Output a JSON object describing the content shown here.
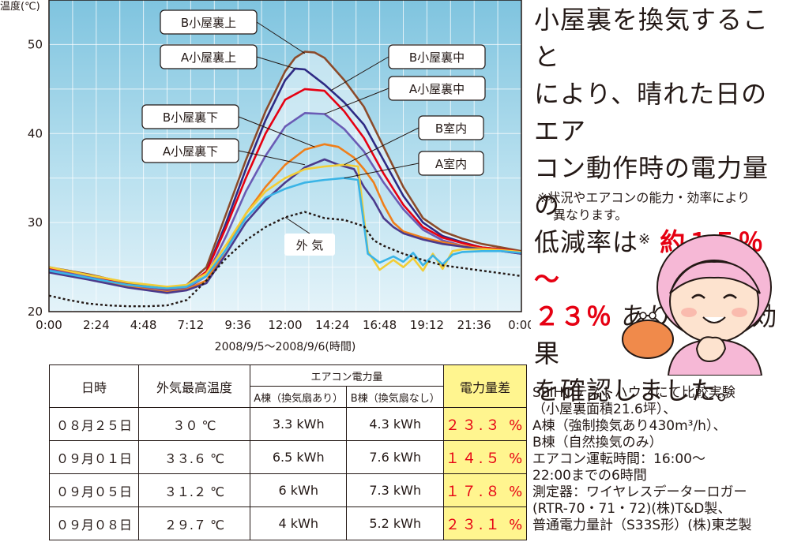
{
  "chart_data": {
    "type": "line",
    "ylabel": "温度(℃)",
    "xlabel": "2008/9/5～2008/9/6(時間)",
    "ylim": [
      20,
      55
    ],
    "xlim": [
      0,
      24
    ],
    "yticks": [
      20,
      30,
      40,
      50
    ],
    "xticks": [
      "0:00",
      "2:24",
      "4:48",
      "7:12",
      "9:36",
      "12:00",
      "14:24",
      "16:48",
      "19:12",
      "21:36",
      "0:00"
    ],
    "grid": true,
    "series": [
      {
        "name": "B小屋裏上",
        "color": "#8b4b2b",
        "x": [
          0,
          2,
          4,
          6,
          7,
          8,
          9,
          10,
          11,
          12,
          12.5,
          13,
          13.5,
          14,
          15,
          16,
          17,
          18,
          19,
          20,
          21,
          22,
          23,
          24
        ],
        "y": [
          25,
          24.2,
          23.2,
          22.6,
          23,
          25,
          31,
          37,
          42.5,
          47,
          48.5,
          49.2,
          49.1,
          48.5,
          46,
          43,
          38.5,
          34,
          30.5,
          29,
          28.2,
          27.6,
          27.2,
          26.8
        ]
      },
      {
        "name": "A小屋裏上",
        "color": "#2e2a84",
        "x": [
          0,
          2,
          4,
          6,
          7,
          8,
          9,
          10,
          11,
          12,
          12.5,
          13,
          14,
          15,
          16,
          17,
          18,
          19,
          20,
          21,
          22,
          23,
          24
        ],
        "y": [
          24.8,
          24,
          23,
          22.3,
          22.7,
          24.5,
          30,
          36,
          41.5,
          46,
          47.3,
          47.2,
          45.5,
          43.5,
          41,
          37,
          33,
          30,
          28.5,
          27.8,
          27.2,
          27,
          26.6
        ]
      },
      {
        "name": "B小屋裏中",
        "color": "#e60012",
        "x": [
          0,
          2,
          4,
          6,
          7,
          8,
          9,
          10,
          11,
          12,
          13,
          14,
          15,
          16,
          17,
          18,
          19,
          20,
          21,
          22,
          23,
          24
        ],
        "y": [
          24.8,
          24,
          23,
          22.4,
          22.8,
          24.5,
          29.5,
          35,
          40,
          43.8,
          45,
          44.8,
          42.5,
          39.5,
          35.5,
          32,
          29.5,
          28.3,
          27.7,
          27.2,
          27,
          26.7
        ]
      },
      {
        "name": "A小屋裏中",
        "color": "#6a5bb5",
        "x": [
          0,
          2,
          4,
          6,
          7,
          8,
          9,
          10,
          11,
          12,
          13,
          14,
          15,
          16,
          17,
          18,
          19,
          20,
          21,
          22,
          23,
          24
        ],
        "y": [
          24.7,
          23.9,
          22.9,
          22.3,
          22.6,
          24,
          28.5,
          33.5,
          37.5,
          40.8,
          42.3,
          42.2,
          40.5,
          38,
          34.5,
          31.5,
          29.2,
          28,
          27.4,
          27,
          26.8,
          26.5
        ]
      },
      {
        "name": "B小屋裏下",
        "color": "#ef7f1a",
        "x": [
          0,
          2,
          4,
          6,
          7,
          8,
          9,
          10,
          11,
          12,
          13,
          14,
          14.7,
          15.5,
          16,
          16.5,
          17,
          17.5,
          18,
          19,
          20,
          21,
          22,
          23,
          24
        ],
        "y": [
          24.5,
          23.7,
          22.8,
          22.2,
          22.5,
          23.5,
          27,
          31,
          34,
          36.5,
          38.2,
          38.8,
          38.5,
          37.3,
          36,
          34.5,
          32,
          30,
          29,
          28.3,
          27.8,
          27.4,
          27.1,
          26.9,
          26.6
        ]
      },
      {
        "name": "A小屋裏下",
        "color": "#4b3a8c",
        "x": [
          0,
          2,
          4,
          6,
          7,
          8,
          9,
          10,
          11,
          12,
          13,
          14,
          14.7,
          15.5,
          16,
          16.5,
          17,
          17.5,
          18,
          19,
          20,
          21,
          22,
          23,
          24
        ],
        "y": [
          24.4,
          23.6,
          22.7,
          22.1,
          22.4,
          23.2,
          26.5,
          30,
          32.5,
          34.5,
          36.2,
          37.1,
          36.5,
          36,
          34,
          32.5,
          30.5,
          29.5,
          28.8,
          28.1,
          27.6,
          27.3,
          27,
          26.8,
          26.5
        ]
      },
      {
        "name": "B室内",
        "color": "#f2cd36",
        "x": [
          0,
          2,
          4,
          6,
          7,
          8,
          9,
          10,
          11,
          12,
          13,
          14,
          15,
          15.7,
          16.2,
          16.8,
          17.5,
          18,
          18.5,
          19,
          19.5,
          20,
          20.5,
          21,
          22,
          23,
          24
        ],
        "y": [
          25,
          24.1,
          23.3,
          22.8,
          23,
          24.3,
          27.5,
          31,
          33.5,
          35,
          36,
          36.3,
          36.5,
          36.3,
          26.8,
          24.7,
          25.8,
          25,
          26,
          24.6,
          26.5,
          24.8,
          26.8,
          27,
          27,
          26.9,
          26.7
        ]
      },
      {
        "name": "A室内",
        "color": "#3ab4e6",
        "x": [
          0,
          2,
          4,
          6,
          7,
          8,
          9,
          10,
          11,
          12,
          13,
          14,
          15,
          15.7,
          16.2,
          16.8,
          17.5,
          18,
          18.5,
          19,
          19.5,
          20,
          20.5,
          21,
          22,
          23,
          24
        ],
        "y": [
          24.6,
          23.8,
          23,
          22.6,
          22.8,
          24,
          27,
          30.5,
          32.8,
          33.8,
          34.5,
          34.8,
          35,
          34.8,
          26.5,
          25.5,
          26.2,
          25.6,
          26.6,
          25.2,
          26.3,
          25.3,
          26.4,
          26.7,
          26.8,
          26.8,
          26.6
        ]
      },
      {
        "name": "外気",
        "color": "#231815",
        "dashed": true,
        "x": [
          0,
          1,
          2,
          3,
          4,
          5,
          6,
          7,
          8,
          9,
          10,
          11,
          12,
          13,
          14,
          15,
          16,
          16.5,
          17,
          18,
          19,
          20,
          21,
          22,
          23,
          24
        ],
        "y": [
          21.8,
          21.3,
          20.9,
          20.7,
          20.6,
          20.6,
          20.7,
          21.3,
          23.5,
          26,
          28,
          29.5,
          30.6,
          31.2,
          30.5,
          30.3,
          29.6,
          28,
          27.4,
          26.5,
          25.8,
          25.2,
          24.9,
          24.6,
          24.3,
          24
        ]
      }
    ],
    "labels": [
      {
        "text": "B小屋裏上",
        "series": 0
      },
      {
        "text": "A小屋裏上",
        "series": 1
      },
      {
        "text": "B小屋裏中",
        "series": 2
      },
      {
        "text": "A小屋裏中",
        "series": 3
      },
      {
        "text": "B小屋裏下",
        "series": 4
      },
      {
        "text": "A小屋裏下",
        "series": 5
      },
      {
        "text": "B室内",
        "series": 6
      },
      {
        "text": "A室内",
        "series": 7
      },
      {
        "text": "外 気",
        "series": 8
      }
    ]
  },
  "headline": {
    "line1": "小屋裏を換気すること",
    "line2": "により、晴れた日のエア",
    "line3": "コン動作時の電力量の",
    "line4_a": "低減率は",
    "line4_sup": "※",
    "line4_hi": "約１５％～",
    "line5_hi": "２３％",
    "line5_b": "あり省エネ効果",
    "line6": "を確認しました。"
  },
  "note": {
    "line1": "※状況やエアコンの能力・効率により",
    "line2": "異なります。"
  },
  "table": {
    "h_date": "日時",
    "h_max": "外気最高温度",
    "h_ac": "エアコン電力量",
    "h_a": "A棟（換気扇あり）",
    "h_b": "B棟（換気扇なし）",
    "h_diff": "電力量差",
    "rows": [
      {
        "date": "０８月２５日",
        "temp": "３０ ℃",
        "a": "3.3 kWh",
        "b": "4.3 kWh",
        "diff": "２３.３ %"
      },
      {
        "date": "０９月０１日",
        "temp": "３３.６ ℃",
        "a": "6.5 kWh",
        "b": "7.6 kWh",
        "diff": "１４.５ %"
      },
      {
        "date": "０９月０５日",
        "temp": "３１.２ ℃",
        "a": "6 kWh",
        "b": "7.3 kWh",
        "diff": "１７.８ %"
      },
      {
        "date": "０９月０８日",
        "temp": "２９.７ ℃",
        "a": "4 kWh",
        "b": "5.2 kWh",
        "diff": "２３.１ %"
      }
    ]
  },
  "info": {
    "l1": "SEIHOテストハウスにて比較実験",
    "l2": "（小屋裏面積21.6坪）、",
    "l3": "A棟（強制換気あり430m³/h）、",
    "l4": "B棟（自然換気のみ）",
    "l5": "エアコン運転時間：16:00～",
    "l6": "22:00までの6時間",
    "l7": "測定器：ワイヤレスデーターロガー",
    "l8": "(RTR-70・71・72)(株)T&D製、",
    "l9": "普通電力量計（S33S形）(株)東芝製"
  },
  "illustration": "smiling-grandmother-with-coin-purse"
}
